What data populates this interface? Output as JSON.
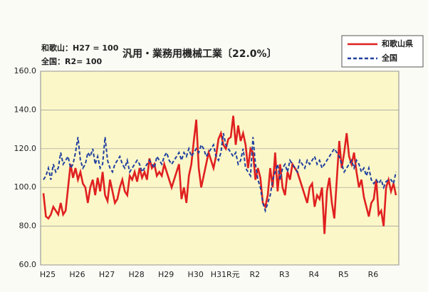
{
  "chart_data": {
    "type": "line",
    "title": "汎用・業務用機械工業〔22.0%〕",
    "subtitle": [
      "和歌山：H27 = 100",
      "全国：R2= 100"
    ],
    "categories": [
      "H25",
      null,
      null,
      null,
      null,
      null,
      null,
      null,
      null,
      null,
      null,
      null,
      "H26",
      null,
      null,
      null,
      null,
      null,
      null,
      null,
      null,
      null,
      null,
      null,
      "H27",
      null,
      null,
      null,
      null,
      null,
      null,
      null,
      null,
      null,
      null,
      null,
      "H28",
      null,
      null,
      null,
      null,
      null,
      null,
      null,
      null,
      null,
      null,
      null,
      "H29",
      null,
      null,
      null,
      null,
      null,
      null,
      null,
      null,
      null,
      null,
      null,
      "H30",
      null,
      null,
      null,
      null,
      null,
      null,
      null,
      null,
      null,
      null,
      null,
      "H31R元",
      null,
      null,
      null,
      null,
      null,
      null,
      null,
      null,
      null,
      null,
      null,
      "R2",
      null,
      null,
      null,
      null,
      null,
      null,
      null,
      null,
      null,
      null,
      null,
      "R3",
      null,
      null,
      null,
      null,
      null,
      null,
      null,
      null,
      null,
      null,
      null,
      "R4",
      null,
      null,
      null,
      null,
      null,
      null,
      null,
      null,
      null,
      null,
      null,
      "R5",
      null,
      null,
      null,
      null,
      null,
      null,
      null,
      null,
      null,
      null,
      null,
      "R6",
      null,
      null,
      null,
      null,
      null,
      null,
      null,
      null,
      null,
      null,
      null
    ],
    "series": [
      {
        "name": "和歌山県",
        "color": "#e02020",
        "dash": false,
        "values": [
          97,
          85,
          84,
          86,
          90,
          88,
          86,
          92,
          86,
          88,
          100,
          112,
          105,
          110,
          104,
          108,
          102,
          100,
          92,
          100,
          104,
          96,
          105,
          98,
          108,
          96,
          93,
          104,
          98,
          92,
          94,
          100,
          104,
          98,
          96,
          106,
          104,
          108,
          103,
          110,
          105,
          108,
          104,
          115,
          110,
          112,
          106,
          108,
          106,
          112,
          108,
          104,
          100,
          104,
          108,
          112,
          94,
          100,
          92,
          106,
          112,
          124,
          135,
          110,
          100,
          106,
          112,
          118,
          114,
          110,
          116,
          125,
          128,
          122,
          120,
          125,
          126,
          137,
          122,
          132,
          124,
          128,
          122,
          110,
          120,
          118,
          104,
          110,
          105,
          92,
          90,
          96,
          110,
          100,
          118,
          98,
          112,
          100,
          96,
          108,
          104,
          112,
          110,
          108,
          104,
          100,
          96,
          92,
          100,
          102,
          90,
          96,
          94,
          100,
          76,
          98,
          105,
          92,
          84,
          104,
          124,
          110,
          118,
          128,
          116,
          112,
          118,
          108,
          100,
          104,
          95,
          90,
          85,
          92,
          94,
          104,
          86,
          88,
          80,
          100,
          104,
          98,
          102,
          96
        ]
      },
      {
        "name": "全国",
        "color": "#2040a0",
        "dash": true,
        "values": [
          104,
          106,
          110,
          104,
          112,
          108,
          110,
          118,
          112,
          114,
          116,
          110,
          112,
          118,
          126,
          114,
          110,
          112,
          118,
          116,
          120,
          112,
          116,
          110,
          112,
          126,
          114,
          110,
          108,
          112,
          114,
          116,
          112,
          110,
          114,
          108,
          110,
          112,
          114,
          112,
          108,
          110,
          112,
          114,
          112,
          110,
          116,
          114,
          112,
          116,
          118,
          114,
          112,
          114,
          116,
          118,
          114,
          118,
          116,
          120,
          116,
          118,
          120,
          118,
          122,
          120,
          116,
          118,
          120,
          122,
          116,
          114,
          118,
          128,
          122,
          120,
          118,
          116,
          118,
          112,
          114,
          120,
          110,
          108,
          106,
          126,
          112,
          104,
          100,
          92,
          88,
          92,
          96,
          104,
          108,
          112,
          104,
          110,
          112,
          108,
          114,
          112,
          110,
          108,
          114,
          112,
          110,
          114,
          112,
          114,
          116,
          112,
          114,
          110,
          112,
          114,
          116,
          118,
          120,
          118,
          116,
          112,
          108,
          110,
          112,
          114,
          110,
          114,
          112,
          108,
          110,
          106,
          110,
          104,
          102,
          104,
          102,
          104,
          100,
          103,
          104,
          104,
          102,
          108
        ]
      }
    ],
    "ylim": [
      60,
      160
    ],
    "yticks": [
      {
        "value": 60,
        "label": "60.0"
      },
      {
        "value": 80,
        "label": "80.0"
      },
      {
        "value": 100,
        "label": "100.0"
      },
      {
        "value": 120,
        "label": "120.0"
      },
      {
        "value": 140,
        "label": "140.0"
      },
      {
        "value": 160,
        "label": "160.0"
      }
    ],
    "grid": true,
    "legend": "top-right"
  }
}
